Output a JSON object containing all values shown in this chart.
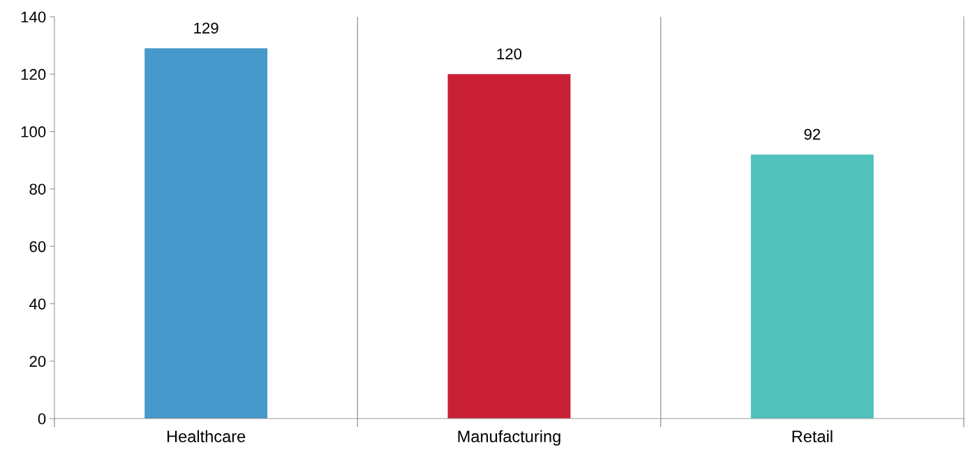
{
  "chart_data": {
    "type": "bar",
    "categories": [
      "Healthcare",
      "Manufacturing",
      "Retail"
    ],
    "values": [
      129,
      120,
      92
    ],
    "colors": [
      "#4699cb",
      "#c91f35",
      "#51c2bb"
    ],
    "ylim": [
      0,
      140
    ],
    "yticks": [
      0,
      20,
      40,
      60,
      80,
      100,
      120,
      140
    ],
    "grid": "x",
    "data_labels": true
  }
}
